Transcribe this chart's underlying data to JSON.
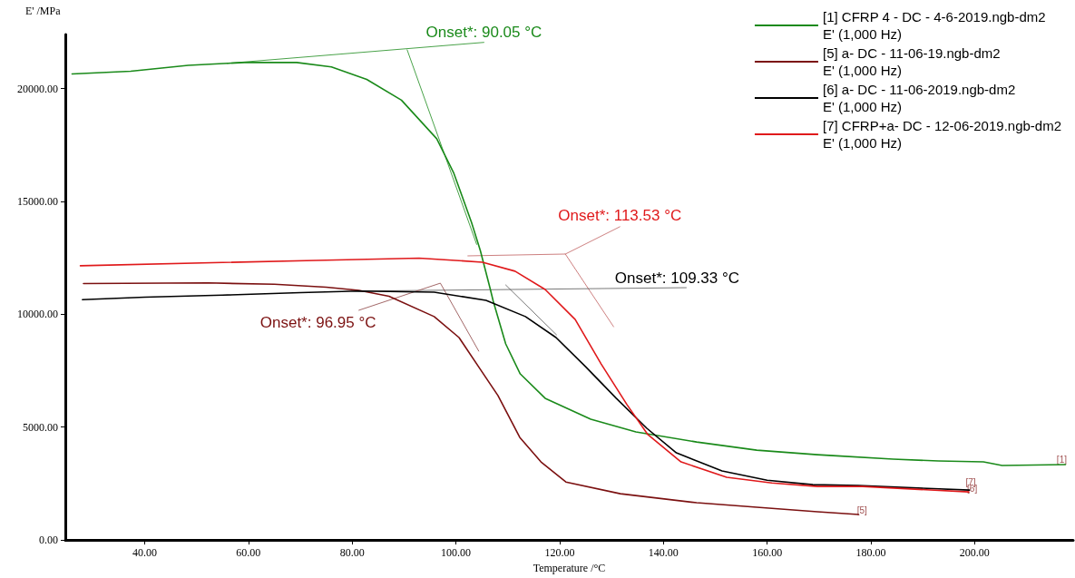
{
  "chart_data": {
    "type": "line",
    "xlabel": "Temperature /°C",
    "ylabel": "E' /MPa",
    "xlim": [
      24.7,
      219
    ],
    "ylim": [
      0,
      22400
    ],
    "xticks": [
      {
        "value": 40,
        "label": "40.00"
      },
      {
        "value": 60,
        "label": "60.00"
      },
      {
        "value": 80,
        "label": "80.00"
      },
      {
        "value": 100,
        "label": "100.00"
      },
      {
        "value": 120,
        "label": "120.00"
      },
      {
        "value": 140,
        "label": "140.00"
      },
      {
        "value": 160,
        "label": "160.00"
      },
      {
        "value": 180,
        "label": "180.00"
      },
      {
        "value": 200,
        "label": "200.00"
      }
    ],
    "yticks": [
      {
        "value": 0,
        "label": "0.00"
      },
      {
        "value": 5000,
        "label": "5000.00"
      },
      {
        "value": 10000,
        "label": "10000.00"
      },
      {
        "value": 15000,
        "label": "15000.00"
      },
      {
        "value": 20000,
        "label": "20000.00"
      }
    ],
    "grid": false,
    "legend": "top right",
    "marker": "none",
    "line_style": "solid",
    "series": [
      {
        "name": "[1] CFRP 4 - DC - 4-6-2019.ngb-dm2\nE' (1,000 Hz)",
        "color": "#1a8a1a",
        "x": [
          26,
          37.3,
          48.4,
          59.2,
          69.3,
          76,
          82.8,
          89.5,
          96.3,
          99.6,
          103,
          104.7,
          106.6,
          107.2,
          109.6,
          112.4,
          117.2,
          126,
          134.7,
          146.4,
          158,
          169.7,
          172.7,
          184.3,
          193,
          201.7,
          205.3,
          217.5
        ],
        "values": [
          20650,
          20770,
          21030,
          21160,
          21160,
          20960,
          20410,
          19490,
          17780,
          16250,
          14080,
          12830,
          11140,
          10580,
          8690,
          7360,
          6280,
          5350,
          4790,
          4340,
          3980,
          3780,
          3740,
          3580,
          3500,
          3460,
          3300,
          3340
        ]
      },
      {
        "name": "[5] a- DC - 11-06-19.ngb-dm2\nE' (1,000 Hz)",
        "color": "#7b1010",
        "x": [
          28.2,
          52.2,
          65,
          75,
          81.3,
          87.1,
          95.8,
          100.6,
          104.6,
          108.1,
          112.3,
          116.4,
          121.2,
          131.7,
          146.4,
          158,
          169.7,
          177.6
        ],
        "values": [
          11360,
          11390,
          11330,
          11200,
          11060,
          10800,
          9900,
          8970,
          7600,
          6400,
          4550,
          3460,
          2570,
          2050,
          1650,
          1450,
          1250,
          1130
        ]
      },
      {
        "name": "[6] a- DC - 11-06-2019.ngb-dm2\nE' (1,000 Hz)",
        "color": "#000000",
        "x": [
          28,
          40,
          55,
          70,
          81.3,
          95.8,
          105.8,
          113.4,
          119.3,
          125,
          130.9,
          136.8,
          142.5,
          151.3,
          160,
          168.8,
          177.6,
          199
        ],
        "values": [
          10650,
          10760,
          10850,
          10960,
          11030,
          10980,
          10620,
          9900,
          8970,
          7680,
          6280,
          4950,
          3860,
          3060,
          2650,
          2450,
          2410,
          2210
        ]
      },
      {
        "name": "[7] CFRP+a- DC - 12-06-2019.ngb-dm2\nE' (1,000 Hz)",
        "color": "#e0191b",
        "x": [
          27.6,
          73,
          92.9,
          105.1,
          111.4,
          117.2,
          123,
          128,
          133,
          137,
          143.4,
          152.2,
          160.9,
          169.7,
          178.4,
          198.9
        ],
        "values": [
          12150,
          12390,
          12490,
          12310,
          11910,
          11100,
          9770,
          7800,
          5990,
          4670,
          3460,
          2780,
          2530,
          2370,
          2370,
          2130
        ]
      },
      {
        "type": "line",
        "color": "#1a8a1a",
        "x": [
          55.9,
          105.4
        ],
        "values": [
          21120,
          22050
        ]
      },
      {
        "type": "line",
        "color": "#1a8a1a",
        "x": [
          90.6,
          104
        ],
        "values": [
          21720,
          13100
        ]
      },
      {
        "type": "line",
        "color": "#c06060",
        "x": [
          102.3,
          121.1,
          131.6
        ],
        "values": [
          12590,
          12670,
          13880
        ]
      },
      {
        "type": "line",
        "color": "#c06060",
        "x": [
          121.1,
          130.4
        ],
        "values": [
          12670,
          9450
        ]
      },
      {
        "type": "line",
        "color": "#555555",
        "x": [
          81.3,
          144.4
        ],
        "values": [
          11030,
          11180
        ]
      },
      {
        "type": "line",
        "color": "#555555",
        "x": [
          109.6,
          119.4
        ],
        "values": [
          11300,
          9090
        ]
      },
      {
        "type": "line",
        "color": "#8a4040",
        "x": [
          81.3,
          97,
          104.4
        ],
        "values": [
          10180,
          11380,
          8370
        ]
      }
    ],
    "annotations": [
      {
        "text": "Onset*: 90.05 °C",
        "x": 105.4,
        "y": 22050
      },
      {
        "text": "Onset*: 113.53 °C",
        "x": 131.6,
        "y": 13880
      },
      {
        "text": "Onset*: 109.33 °C",
        "x": 144.4,
        "y": 11180
      },
      {
        "text": "Onset*: 96.95 °C",
        "x": 81.3,
        "y": 10180
      },
      {
        "text": "[1]",
        "x": 217.5,
        "y": 3340
      },
      {
        "text": "[7]",
        "x": 198.9,
        "y": 2130
      },
      {
        "text": "[6]",
        "x": 199,
        "y": 2210
      },
      {
        "text": "[5]",
        "x": 177.6,
        "y": 1130
      }
    ]
  }
}
